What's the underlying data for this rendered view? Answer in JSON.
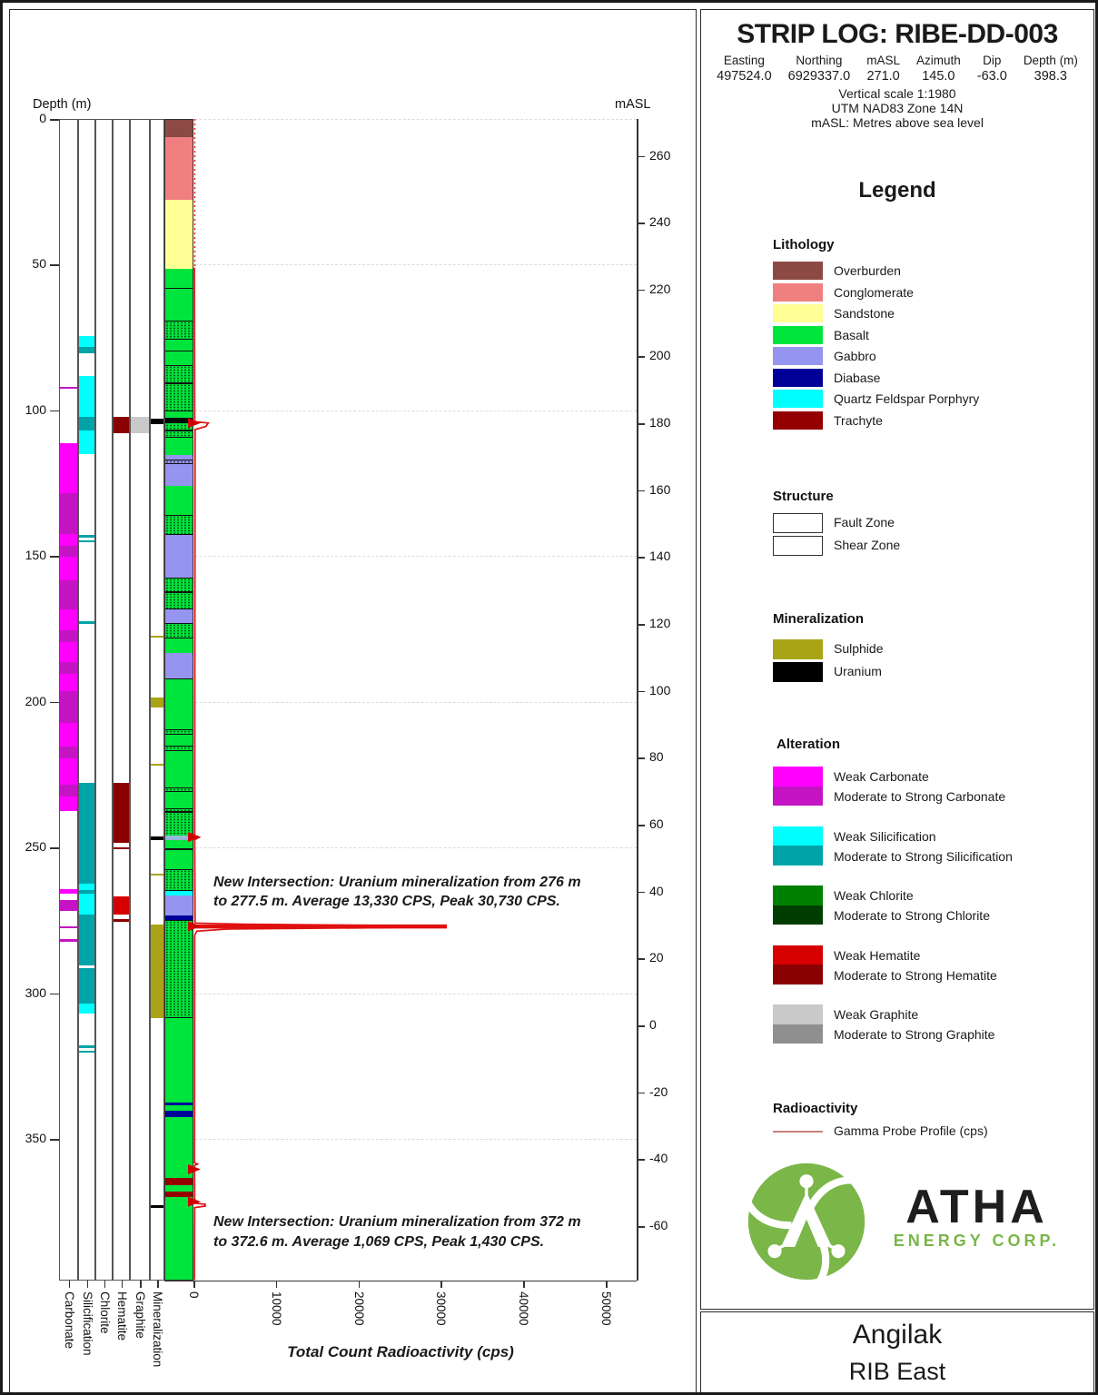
{
  "page": {
    "title": "STRIP LOG: RIBE-DD-003",
    "header_fields": [
      {
        "label": "Easting",
        "value": "497524.0"
      },
      {
        "label": "Northing",
        "value": "6929337.0"
      },
      {
        "label": "mASL",
        "value": "271.0"
      },
      {
        "label": "Azimuth",
        "value": "145.0"
      },
      {
        "label": "Dip",
        "value": "-63.0"
      },
      {
        "label": "Depth (m)",
        "value": "398.3"
      }
    ],
    "notes": [
      "Vertical scale 1:1980",
      "UTM NAD83 Zone 14N",
      "mASL: Metres above sea level"
    ],
    "footer": {
      "project": "Angilak",
      "area": "RIB East"
    },
    "logo": {
      "company": "ATHA",
      "subtitle": "ENERGY CORP."
    }
  },
  "legend": {
    "title": "Legend",
    "sections": {
      "lithology": {
        "title": "Lithology",
        "items": [
          {
            "label": "Overburden",
            "key": "overburden"
          },
          {
            "label": "Conglomerate",
            "key": "conglomerate"
          },
          {
            "label": "Sandstone",
            "key": "sandstone"
          },
          {
            "label": "Basalt",
            "key": "basalt"
          },
          {
            "label": "Gabbro",
            "key": "gabbro"
          },
          {
            "label": "Diabase",
            "key": "diabase"
          },
          {
            "label": "Quartz Feldspar Porphyry",
            "key": "qfp"
          },
          {
            "label": "Trachyte",
            "key": "trachyte"
          }
        ]
      },
      "structure": {
        "title": "Structure",
        "items": [
          {
            "label": "Fault Zone",
            "pattern": "fault"
          },
          {
            "label": "Shear Zone",
            "pattern": "shear"
          }
        ]
      },
      "mineralization": {
        "title": "Mineralization",
        "items": [
          {
            "label": "Sulphide",
            "key": "sulphide"
          },
          {
            "label": "Uranium",
            "key": "uranium"
          }
        ]
      },
      "alteration": {
        "title": "Alteration",
        "items": [
          {
            "weak_label": "Weak Carbonate",
            "strong_label": "Moderate to Strong Carbonate",
            "weak_key": "carbonate_weak",
            "strong_key": "carbonate_strong"
          },
          {
            "weak_label": "Weak Silicification",
            "strong_label": "Moderate to Strong Silicification",
            "weak_key": "silicification_weak",
            "strong_key": "silicification_strong"
          },
          {
            "weak_label": "Weak Chlorite",
            "strong_label": "Moderate to Strong Chlorite",
            "weak_key": "chlorite_weak",
            "strong_key": "chlorite_strong"
          },
          {
            "weak_label": "Weak Hematite",
            "strong_label": "Moderate to Strong Hematite",
            "weak_key": "hematite_weak",
            "strong_key": "hematite_strong"
          },
          {
            "weak_label": "Weak Graphite",
            "strong_label": "Moderate to Strong Graphite",
            "weak_key": "graphite_weak",
            "strong_key": "graphite_strong"
          }
        ]
      },
      "radioactivity": {
        "title": "Radioactivity",
        "items": [
          {
            "label": "Gamma Probe Profile (cps)",
            "key": "gamma_legend"
          }
        ]
      }
    }
  },
  "chart_data": {
    "type": "striplog",
    "hole_id": "RIBE-DD-003",
    "palette": {
      "overburden": "#8D4A45",
      "conglomerate": "#F08080",
      "sandstone": "#FFFF96",
      "basalt": "#00E53C",
      "gabbro": "#9595EF",
      "diabase": "#000099",
      "qfp": "#00FFFF",
      "trachyte": "#940000",
      "carbonate_weak": "#FF00FF",
      "carbonate_strong": "#C414C4",
      "silicification_weak": "#00FFFF",
      "silicification_strong": "#00A4A8",
      "chlorite_weak": "#008000",
      "chlorite_strong": "#003D00",
      "hematite_weak": "#D60000",
      "hematite_strong": "#8B0000",
      "graphite_weak": "#C9C9C9",
      "graphite_strong": "#8F8F8F",
      "sulphide": "#A8A416",
      "uranium": "#000000",
      "gamma": "#E01010",
      "gamma_legend": "#C98080",
      "pale_blue_band": "#9DB7E0"
    },
    "depth_axis": {
      "label": "Depth (m)",
      "min": 0,
      "max": 398.3,
      "ticks": [
        0,
        50,
        100,
        150,
        200,
        250,
        300,
        350
      ]
    },
    "masl_axis": {
      "label": "mASL",
      "collar_masl": 271,
      "ticks": [
        260,
        240,
        220,
        200,
        180,
        160,
        140,
        120,
        100,
        80,
        60,
        40,
        20,
        0,
        -20,
        -40,
        -60
      ]
    },
    "radioactivity_axis": {
      "label": "Total Count Radioactivity (cps)",
      "min": 0,
      "max": 50000,
      "ticks": [
        0,
        10000,
        20000,
        30000,
        40000,
        50000
      ]
    },
    "alteration_columns": [
      {
        "label": "Carbonate",
        "intervals": [
          [
            91.5,
            92.3,
            "carbonate_strong"
          ],
          [
            111,
            128,
            "carbonate_weak"
          ],
          [
            128,
            142,
            "carbonate_strong"
          ],
          [
            142,
            146,
            "carbonate_weak"
          ],
          [
            146,
            150,
            "carbonate_strong"
          ],
          [
            150,
            158,
            "carbonate_weak"
          ],
          [
            158,
            168,
            "carbonate_strong"
          ],
          [
            168,
            175,
            "carbonate_weak"
          ],
          [
            175,
            179,
            "carbonate_strong"
          ],
          [
            179,
            186,
            "carbonate_weak"
          ],
          [
            186,
            190,
            "carbonate_strong"
          ],
          [
            190,
            196,
            "carbonate_weak"
          ],
          [
            196,
            207,
            "carbonate_strong"
          ],
          [
            207,
            215,
            "carbonate_weak"
          ],
          [
            215,
            219,
            "carbonate_strong"
          ],
          [
            219,
            228,
            "carbonate_weak"
          ],
          [
            228,
            232,
            "carbonate_strong"
          ],
          [
            232,
            237,
            "carbonate_weak"
          ],
          [
            264,
            265.5,
            "carbonate_weak"
          ],
          [
            267.5,
            271.5,
            "carbonate_strong"
          ],
          [
            276.5,
            277.3,
            "carbonate_strong"
          ],
          [
            281,
            281.8,
            "carbonate_strong"
          ]
        ]
      },
      {
        "label": "Silicification",
        "intervals": [
          [
            74,
            78,
            "silicification_weak"
          ],
          [
            78,
            80,
            "silicification_strong"
          ],
          [
            88,
            102,
            "silicification_weak"
          ],
          [
            102,
            106.5,
            "silicification_strong"
          ],
          [
            106.5,
            114.5,
            "silicification_weak"
          ],
          [
            142.5,
            143.3,
            "silicification_strong"
          ],
          [
            144.2,
            145,
            "silicification_strong"
          ],
          [
            172,
            172.8,
            "silicification_strong"
          ],
          [
            227.5,
            262,
            "silicification_strong"
          ],
          [
            262,
            264.3,
            "silicification_weak"
          ],
          [
            264.3,
            265.3,
            "silicification_strong"
          ],
          [
            265.3,
            272.5,
            "silicification_weak"
          ],
          [
            272.5,
            290,
            "silicification_strong"
          ],
          [
            291,
            303,
            "silicification_strong"
          ],
          [
            303,
            306.5,
            "silicification_weak"
          ],
          [
            317.5,
            318.3,
            "silicification_strong"
          ],
          [
            319.2,
            320,
            "silicification_strong"
          ]
        ]
      },
      {
        "label": "Chlorite",
        "intervals": []
      },
      {
        "label": "Hematite",
        "intervals": [
          [
            102,
            107.5,
            "hematite_strong"
          ],
          [
            227.5,
            248,
            "hematite_strong"
          ],
          [
            249.5,
            250.3,
            "hematite_strong"
          ],
          [
            266.5,
            272.5,
            "hematite_weak"
          ],
          [
            274,
            275,
            "hematite_strong"
          ]
        ]
      },
      {
        "label": "Graphite",
        "intervals": [
          [
            102,
            107.5,
            "graphite_weak"
          ]
        ]
      },
      {
        "label": "Mineralization",
        "intervals": [
          [
            102.5,
            104.5,
            "uranium"
          ],
          [
            176.8,
            177.6,
            "sulphide"
          ],
          [
            198,
            201.5,
            "sulphide"
          ],
          [
            220.8,
            221.6,
            "sulphide"
          ],
          [
            245.8,
            247.2,
            "uranium"
          ],
          [
            258.5,
            259.3,
            "sulphide"
          ],
          [
            276,
            308,
            "sulphide"
          ],
          [
            372.2,
            373.2,
            "uranium"
          ]
        ]
      }
    ],
    "lithology_column": {
      "intervals": [
        [
          0,
          6,
          "overburden",
          0
        ],
        [
          6,
          27.5,
          "conglomerate",
          0
        ],
        [
          27.5,
          51,
          "sandstone",
          0
        ],
        [
          51,
          69,
          "basalt",
          0
        ],
        [
          69,
          75.5,
          "basalt",
          1
        ],
        [
          75.5,
          84,
          "basalt",
          0
        ],
        [
          84,
          90.5,
          "basalt",
          1
        ],
        [
          90.5,
          100,
          "basalt",
          1
        ],
        [
          100,
          102.3,
          "basalt",
          0
        ],
        [
          102.3,
          106.5,
          "basalt",
          1
        ],
        [
          106.5,
          109,
          "basalt",
          1
        ],
        [
          109,
          115,
          "basalt",
          0
        ],
        [
          115,
          116.5,
          "gabbro",
          0
        ],
        [
          116.5,
          118,
          "gabbro",
          1
        ],
        [
          118,
          125.5,
          "gabbro",
          0
        ],
        [
          125.5,
          135.5,
          "basalt",
          0
        ],
        [
          135.5,
          142.5,
          "basalt",
          1
        ],
        [
          142.5,
          157,
          "gabbro",
          0
        ],
        [
          157,
          162,
          "basalt",
          1
        ],
        [
          162,
          168,
          "basalt",
          1
        ],
        [
          168,
          172.5,
          "gabbro",
          0
        ],
        [
          172.5,
          178,
          "basalt",
          1
        ],
        [
          178,
          183,
          "basalt",
          0
        ],
        [
          183,
          191.5,
          "gabbro",
          0
        ],
        [
          191.5,
          209,
          "basalt",
          0
        ],
        [
          209,
          211,
          "basalt",
          1
        ],
        [
          211,
          214.5,
          "basalt",
          0
        ],
        [
          214.5,
          216.5,
          "basalt",
          1
        ],
        [
          216.5,
          229,
          "basalt",
          0
        ],
        [
          229,
          230.5,
          "basalt",
          1
        ],
        [
          230.5,
          236,
          "basalt",
          0
        ],
        [
          236,
          237.5,
          "basalt",
          1
        ],
        [
          237.5,
          247,
          "basalt",
          1
        ],
        [
          247,
          257,
          "basalt",
          0
        ],
        [
          257,
          264.5,
          "basalt",
          1
        ],
        [
          264.5,
          266,
          "qfp",
          0
        ],
        [
          266,
          273,
          "gabbro",
          0
        ],
        [
          273,
          274.5,
          "diabase",
          0
        ],
        [
          274.5,
          308,
          "basalt",
          1
        ],
        [
          308,
          337,
          "basalt",
          0
        ],
        [
          337,
          338,
          "diabase",
          0
        ],
        [
          338,
          340,
          "basalt",
          0
        ],
        [
          340,
          342,
          "diabase",
          0
        ],
        [
          342,
          363,
          "basalt",
          0
        ],
        [
          363,
          365.5,
          "trachyte",
          0
        ],
        [
          365.5,
          367.5,
          "basalt",
          0
        ],
        [
          367.5,
          369.5,
          "trachyte",
          0
        ],
        [
          369.5,
          398.3,
          "basalt",
          0
        ]
      ],
      "contacts": [
        57.5,
        79,
        191.5,
        250
      ],
      "overlays": [
        [
          102.4,
          104.2,
          "uranium"
        ],
        [
          245.5,
          247,
          "pale_blue_band"
        ]
      ]
    },
    "gamma_profile": {
      "units": "cps",
      "profile": [
        [
          51,
          120
        ],
        [
          103.8,
          150
        ],
        [
          104.3,
          1800
        ],
        [
          105.5,
          1500
        ],
        [
          106.5,
          200
        ],
        [
          245.8,
          150
        ],
        [
          246.4,
          700
        ],
        [
          247.2,
          150
        ],
        [
          275.8,
          200
        ],
        [
          276.2,
          6000
        ],
        [
          276.8,
          30730
        ],
        [
          277.4,
          24000
        ],
        [
          277.9,
          4000
        ],
        [
          278.6,
          400
        ],
        [
          280,
          150
        ],
        [
          358.1,
          130
        ],
        [
          358.5,
          500
        ],
        [
          359,
          130
        ],
        [
          371.9,
          150
        ],
        [
          372.3,
          1430
        ],
        [
          372.9,
          1430
        ],
        [
          373.4,
          150
        ],
        [
          398.3,
          120
        ]
      ],
      "surface_dotted_range": [
        0,
        51
      ],
      "peak_bars": [
        [
          276.5,
          277.5,
          30730
        ]
      ],
      "arrow_depths": [
        104.3,
        246.3,
        276.9,
        360.3,
        371.4
      ]
    },
    "annotations": [
      {
        "depth": 258.5,
        "lines": [
          "New Intersection: Uranium mineralization from 276 m",
          "to 277.5 m. Average 13,330 CPS, Peak 30,730 CPS."
        ]
      },
      {
        "depth": 375.2,
        "lines": [
          "New Intersection: Uranium mineralization from 372 m",
          "to 372.6 m. Average 1,069 CPS, Peak 1,430 CPS."
        ]
      }
    ]
  }
}
